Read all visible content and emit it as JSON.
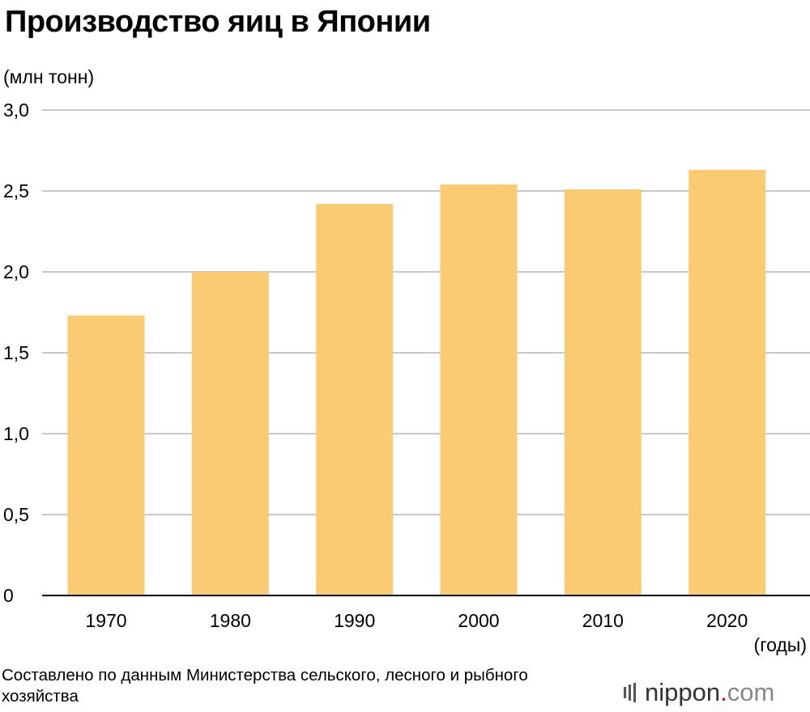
{
  "title": "Производство яиц в Японии",
  "unit_label": "(млн тонн)",
  "x_unit_label": "(годы)",
  "source": "Составлено по данным Министерства сельского, лесного и рыбного хозяйства",
  "logo": {
    "name": "nippon",
    "dot": ".",
    "suffix": "com"
  },
  "colors": {
    "bar": "#FBCB74",
    "grid": "#C8C8C8",
    "axis": "#000000"
  },
  "chart_data": {
    "type": "bar",
    "title": "Производство яиц в Японии",
    "ylabel": "(млн тонн)",
    "xlabel": "(годы)",
    "categories": [
      "1970",
      "1980",
      "1990",
      "2000",
      "2010",
      "2020"
    ],
    "values": [
      1.73,
      2.0,
      2.42,
      2.54,
      2.51,
      2.63
    ],
    "ylim": [
      0,
      3.0
    ],
    "yticks": [
      0,
      0.5,
      1.0,
      1.5,
      2.0,
      2.5,
      3.0
    ],
    "ytick_labels": [
      "0",
      "0,5",
      "1,0",
      "1,5",
      "2,0",
      "2,5",
      "3,0"
    ],
    "grid": true,
    "legend": "none"
  }
}
